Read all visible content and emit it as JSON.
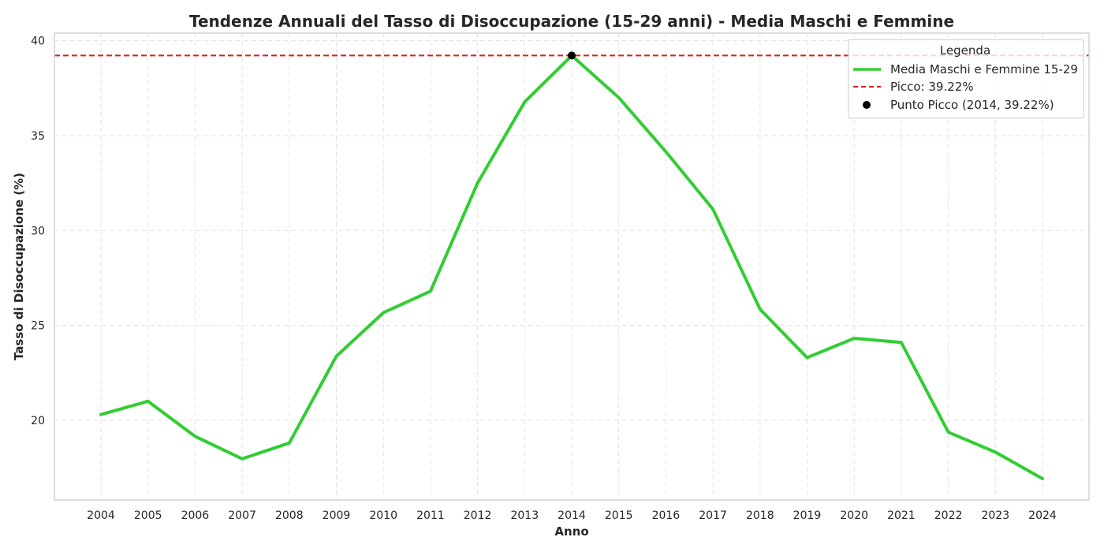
{
  "chart_data": {
    "type": "line",
    "title": "Tendenze Annuali del Tasso di Disoccupazione (15-29 anni) - Media Maschi e Femmine",
    "xlabel": "Anno",
    "ylabel": "Tasso di Disoccupazione (%)",
    "ylim": [
      15.8,
      40.4
    ],
    "yticks": [
      20,
      25,
      30,
      35,
      40
    ],
    "grid": true,
    "legend_position": "top-right",
    "legend_title": "Legenda",
    "categories": [
      "2004",
      "2005",
      "2006",
      "2007",
      "2008",
      "2009",
      "2010",
      "2011",
      "2012",
      "2013",
      "2014",
      "2015",
      "2016",
      "2017",
      "2018",
      "2019",
      "2020",
      "2021",
      "2022",
      "2023",
      "2024"
    ],
    "series": [
      {
        "name": "Media Maschi e Femmine 15-29",
        "color": "#32cd32",
        "values": [
          20.3,
          21.0,
          19.15,
          17.97,
          18.8,
          23.37,
          25.67,
          26.8,
          32.5,
          36.77,
          39.22,
          37.0,
          34.15,
          31.12,
          25.85,
          23.3,
          24.32,
          24.1,
          19.37,
          18.32,
          16.92
        ]
      }
    ],
    "reference_lines": [
      {
        "name": "Picco: 39.22%",
        "value": 39.22,
        "color": "#e41a1c",
        "style": "dashed"
      }
    ],
    "points": [
      {
        "name": "Punto Picco (2014, 39.22%)",
        "x": "2014",
        "y": 39.22,
        "color": "#000000"
      }
    ]
  }
}
